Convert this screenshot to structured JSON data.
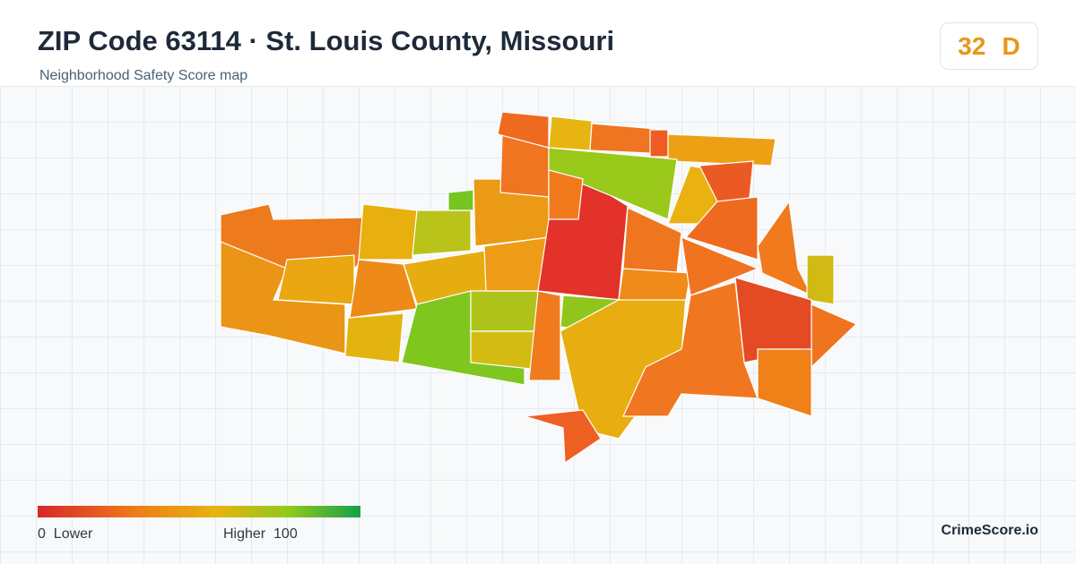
{
  "header": {
    "title": "ZIP Code 63114 · St. Louis County, Missouri",
    "subtitle": "Neighborhood Safety Score map"
  },
  "score": {
    "value": 32,
    "grade": "D"
  },
  "legend": {
    "min": 0,
    "min_label": "Lower",
    "max_label": "Higher",
    "max": 100
  },
  "brand": "CrimeScore.io"
}
